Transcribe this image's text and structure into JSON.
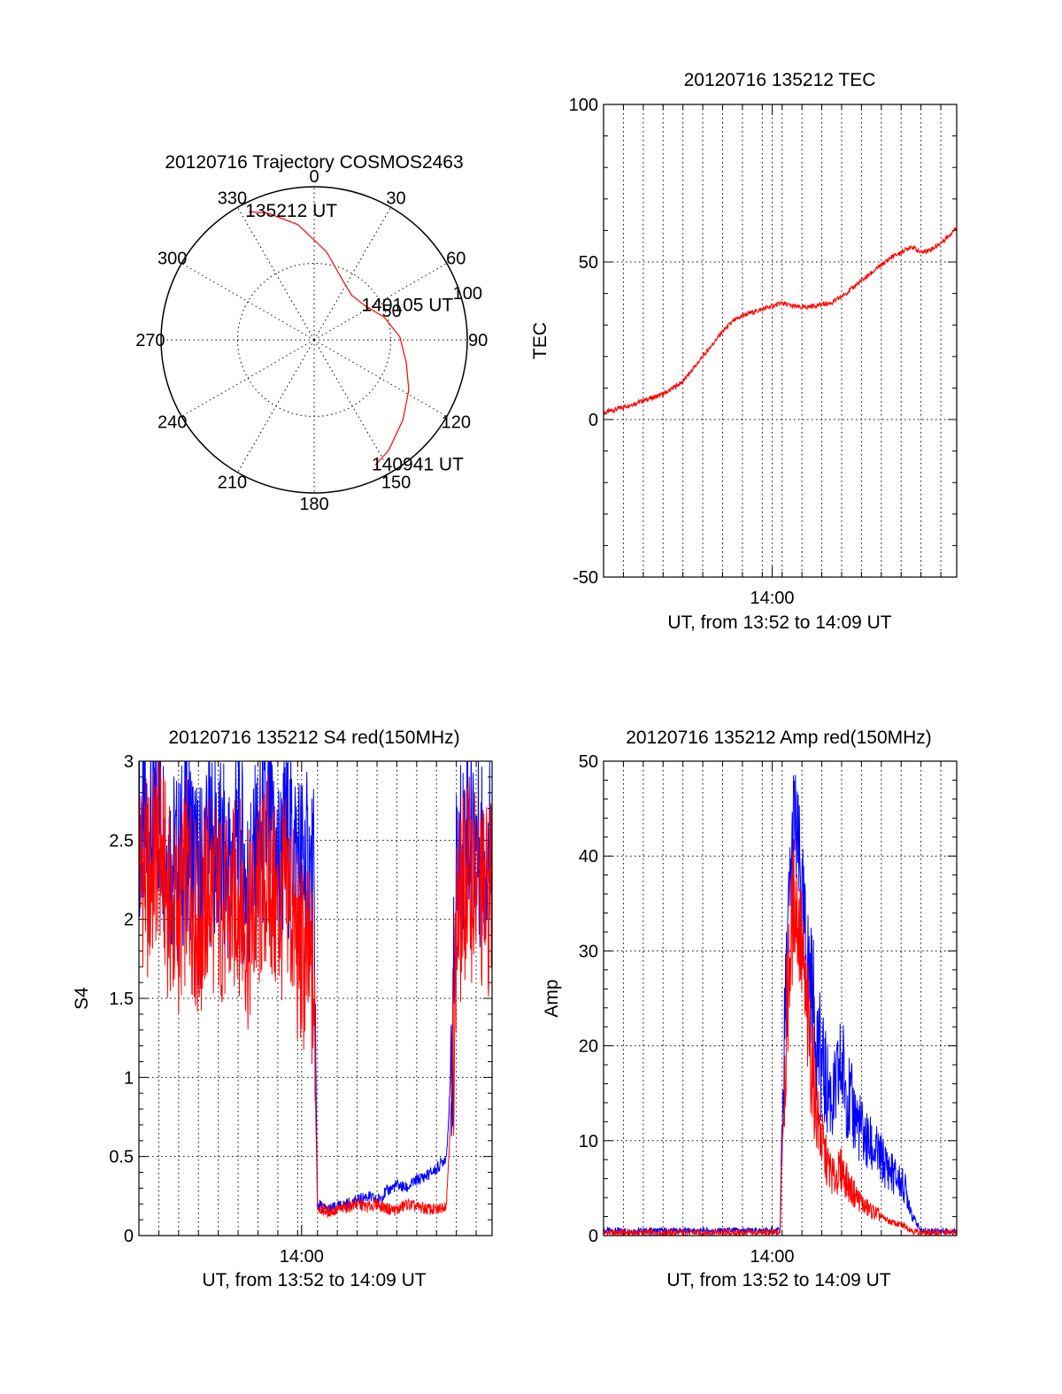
{
  "colors": {
    "red": "#ff0000",
    "blue": "#0000ff",
    "axis": "#000000",
    "grid": "#000000"
  },
  "chart_data": [
    {
      "type": "polar",
      "title": "20120716 Trajectory COSMOS2463",
      "azimuth_labels": [
        "0",
        "30",
        "60",
        "90",
        "120",
        "150",
        "180",
        "210",
        "240",
        "270",
        "300",
        "330"
      ],
      "radial_labels": [
        "50",
        "100"
      ],
      "rlim": [
        0,
        100
      ],
      "grid": true,
      "trajectory": {
        "azimuth": [
          333,
          340,
          352,
          8,
          24,
          40,
          56,
          72,
          88,
          104,
          118,
          132,
          146,
          154
        ],
        "radius": [
          94,
          88,
          76,
          58,
          44,
          38,
          40,
          48,
          56,
          62,
          70,
          78,
          87,
          91
        ]
      },
      "annotations": [
        {
          "text": "135212 UT",
          "azimuth": 333,
          "radius": 94
        },
        {
          "text": "140105 UT",
          "azimuth": 56,
          "radius": 40
        },
        {
          "text": "140941 UT",
          "azimuth": 154,
          "radius": 91
        }
      ]
    },
    {
      "type": "line",
      "title": "20120716 135212 TEC",
      "xlabel": "UT, from 13:52 to 14:09 UT",
      "ylabel": "TEC",
      "x_tick_labels": [
        {
          "minutes": 8.5,
          "label": "14:00"
        }
      ],
      "y_tick_labels": [
        "-50",
        "0",
        "50",
        "100"
      ],
      "xlim_minutes": [
        0,
        17.8
      ],
      "ylim": [
        -50,
        100
      ],
      "grid": true,
      "series": [
        {
          "color": "red",
          "x": [
            0,
            0.5,
            1.0,
            1.5,
            2.0,
            2.5,
            3.0,
            3.5,
            4.0,
            4.5,
            5.0,
            5.5,
            6.0,
            6.5,
            7.0,
            7.5,
            8.0,
            8.5,
            9.0,
            9.5,
            10.0,
            10.5,
            11.0,
            11.5,
            12.0,
            12.5,
            13.0,
            13.5,
            14.0,
            14.5,
            15.0,
            15.5,
            16.0,
            16.5,
            17.0,
            17.5,
            17.8
          ],
          "y": [
            2,
            3,
            4,
            5,
            6,
            7,
            8,
            10,
            12,
            16,
            20,
            24,
            28,
            31,
            33,
            34,
            35,
            36,
            37,
            36,
            35.5,
            36,
            36.5,
            37,
            39,
            41.5,
            44,
            46.5,
            49,
            51.5,
            53,
            55,
            53,
            54,
            56,
            59,
            61
          ]
        }
      ]
    },
    {
      "type": "line",
      "title": "20120716 135212 S4 red(150MHz)",
      "xlabel": "UT, from 13:52 to 14:09 UT",
      "ylabel": "S4",
      "x_tick_labels": [
        {
          "minutes": 8.2,
          "label": "14:00"
        }
      ],
      "y_tick_labels": [
        "0",
        "0.5",
        "1",
        "1.5",
        "2",
        "2.5",
        "3"
      ],
      "xlim_minutes": [
        0,
        17.8
      ],
      "ylim": [
        0,
        3
      ],
      "grid": true,
      "series": [
        {
          "color": "blue",
          "x": [
            0,
            0.5,
            1,
            1.5,
            2,
            2.5,
            3,
            3.5,
            4,
            4.5,
            5,
            5.5,
            6,
            6.5,
            7,
            7.5,
            8,
            8.5,
            8.8,
            9,
            9.5,
            10,
            10.5,
            11,
            11.5,
            12,
            12.5,
            13,
            13.5,
            14,
            14.5,
            15,
            15.5,
            15.8,
            16,
            16.5,
            17,
            17.5,
            17.8
          ],
          "y": [
            2.6,
            2.5,
            2.7,
            2.4,
            2.3,
            2.6,
            2.2,
            2.5,
            2.4,
            2.3,
            2.5,
            2.2,
            2.4,
            2.6,
            2.3,
            2.5,
            2.4,
            2.3,
            2.2,
            0.2,
            0.16,
            0.18,
            0.2,
            0.22,
            0.25,
            0.22,
            0.28,
            0.32,
            0.3,
            0.35,
            0.38,
            0.42,
            0.5,
            1.2,
            2.2,
            2.6,
            2.5,
            2.4,
            2.5
          ]
        },
        {
          "color": "red",
          "x": [
            0,
            0.5,
            1,
            1.5,
            2,
            2.5,
            3,
            3.5,
            4,
            4.5,
            5,
            5.5,
            6,
            6.5,
            7,
            7.5,
            8,
            8.5,
            8.8,
            9,
            9.5,
            10,
            10.5,
            11,
            11.5,
            12,
            12.5,
            13,
            13.5,
            14,
            14.5,
            15,
            15.5,
            15.8,
            16,
            16.5,
            17,
            17.5,
            17.8
          ],
          "y": [
            2.4,
            2.2,
            2.5,
            2.1,
            2.0,
            2.3,
            1.9,
            2.2,
            2.1,
            2.0,
            2.2,
            1.9,
            2.1,
            2.3,
            2.0,
            2.2,
            1.8,
            1.7,
            1.6,
            0.18,
            0.15,
            0.16,
            0.18,
            0.2,
            0.18,
            0.2,
            0.17,
            0.16,
            0.2,
            0.18,
            0.17,
            0.16,
            0.2,
            1.0,
            1.9,
            2.3,
            2.2,
            2.1,
            2.2
          ]
        }
      ]
    },
    {
      "type": "line",
      "title": "20120716 135212 Amp red(150MHz)",
      "xlabel": "UT, from 13:52 to 14:09 UT",
      "ylabel": "Amp",
      "x_tick_labels": [
        {
          "minutes": 8.5,
          "label": "14:00"
        }
      ],
      "y_tick_labels": [
        "0",
        "10",
        "20",
        "30",
        "40",
        "50"
      ],
      "xlim_minutes": [
        0,
        17.8
      ],
      "ylim": [
        0,
        50
      ],
      "grid": true,
      "series": [
        {
          "color": "blue",
          "x": [
            0,
            1,
            2,
            3,
            4,
            5,
            6,
            7,
            8,
            8.9,
            9.0,
            9.3,
            9.6,
            9.9,
            10.2,
            10.5,
            10.8,
            11.2,
            11.6,
            12.0,
            12.4,
            12.8,
            13.2,
            13.6,
            14.0,
            14.4,
            14.8,
            15.2,
            15.6,
            16,
            17,
            17.8
          ],
          "y": [
            0.5,
            0.5,
            0.5,
            0.5,
            0.5,
            0.5,
            0.5,
            0.5,
            0.5,
            0.5,
            12,
            32,
            44,
            38,
            30,
            26,
            20,
            16,
            14,
            18,
            14,
            12,
            10,
            9,
            8,
            7,
            6,
            5,
            2,
            0.5,
            0.5,
            0.5
          ]
        },
        {
          "color": "red",
          "x": [
            0,
            1,
            2,
            3,
            4,
            5,
            6,
            7,
            8,
            8.9,
            9.0,
            9.3,
            9.6,
            9.9,
            10.2,
            10.5,
            10.8,
            11.2,
            11.6,
            12.0,
            12.4,
            12.8,
            13.2,
            13.6,
            14.0,
            14.4,
            14.8,
            15.2,
            15.6,
            16,
            17,
            17.8
          ],
          "y": [
            0.3,
            0.3,
            0.3,
            0.3,
            0.3,
            0.3,
            0.3,
            0.3,
            0.3,
            0.3,
            10,
            26,
            36,
            32,
            24,
            18,
            12,
            8,
            6,
            7,
            5,
            4,
            3,
            2.5,
            2,
            1.5,
            1.2,
            1,
            0.5,
            0.3,
            0.3,
            0.3
          ]
        }
      ]
    }
  ]
}
